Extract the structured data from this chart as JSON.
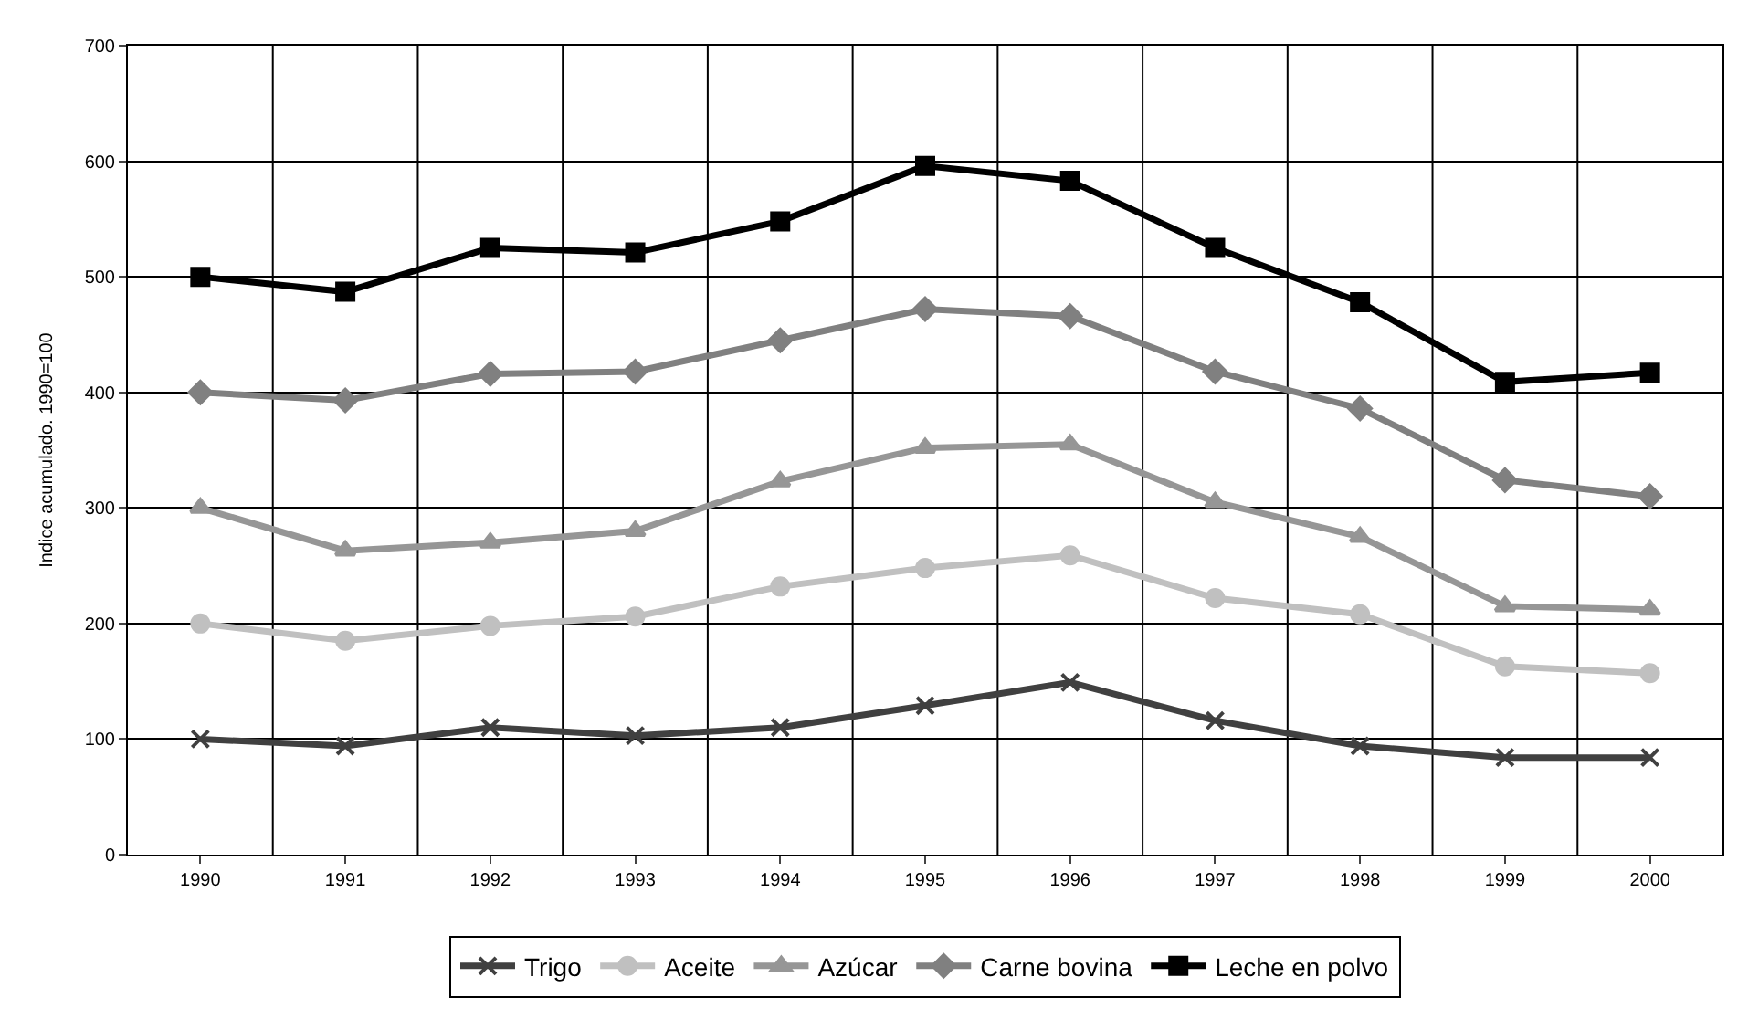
{
  "chart_data": {
    "type": "line",
    "ylabel": "Indice acumulado. 1990=100",
    "categories": [
      "1990",
      "1991",
      "1992",
      "1993",
      "1994",
      "1995",
      "1996",
      "1997",
      "1998",
      "1999",
      "2000"
    ],
    "series": [
      {
        "name": "Trigo",
        "color": "#404040",
        "marker": "cross",
        "values": [
          100,
          94,
          110,
          103,
          110,
          129,
          149,
          116,
          94,
          84,
          84
        ]
      },
      {
        "name": "Aceite",
        "color": "#c0c0c0",
        "marker": "circle",
        "values": [
          200,
          185,
          198,
          206,
          232,
          248,
          259,
          222,
          208,
          163,
          157
        ]
      },
      {
        "name": "Azúcar",
        "color": "#969696",
        "marker": "triangle",
        "values": [
          300,
          263,
          270,
          280,
          323,
          352,
          355,
          305,
          275,
          215,
          212
        ]
      },
      {
        "name": "Carne bovina",
        "color": "#808080",
        "marker": "diamond",
        "values": [
          400,
          393,
          416,
          418,
          445,
          472,
          466,
          418,
          386,
          324,
          310
        ]
      },
      {
        "name": "Leche en polvo",
        "color": "#000000",
        "marker": "square",
        "values": [
          500,
          487,
          525,
          521,
          548,
          596,
          583,
          525,
          478,
          409,
          417
        ]
      }
    ],
    "ylim": [
      0,
      700
    ],
    "yticks": [
      0,
      100,
      200,
      300,
      400,
      500,
      600,
      700
    ],
    "grid": true,
    "legend": "bottom",
    "line_style": "solid"
  }
}
